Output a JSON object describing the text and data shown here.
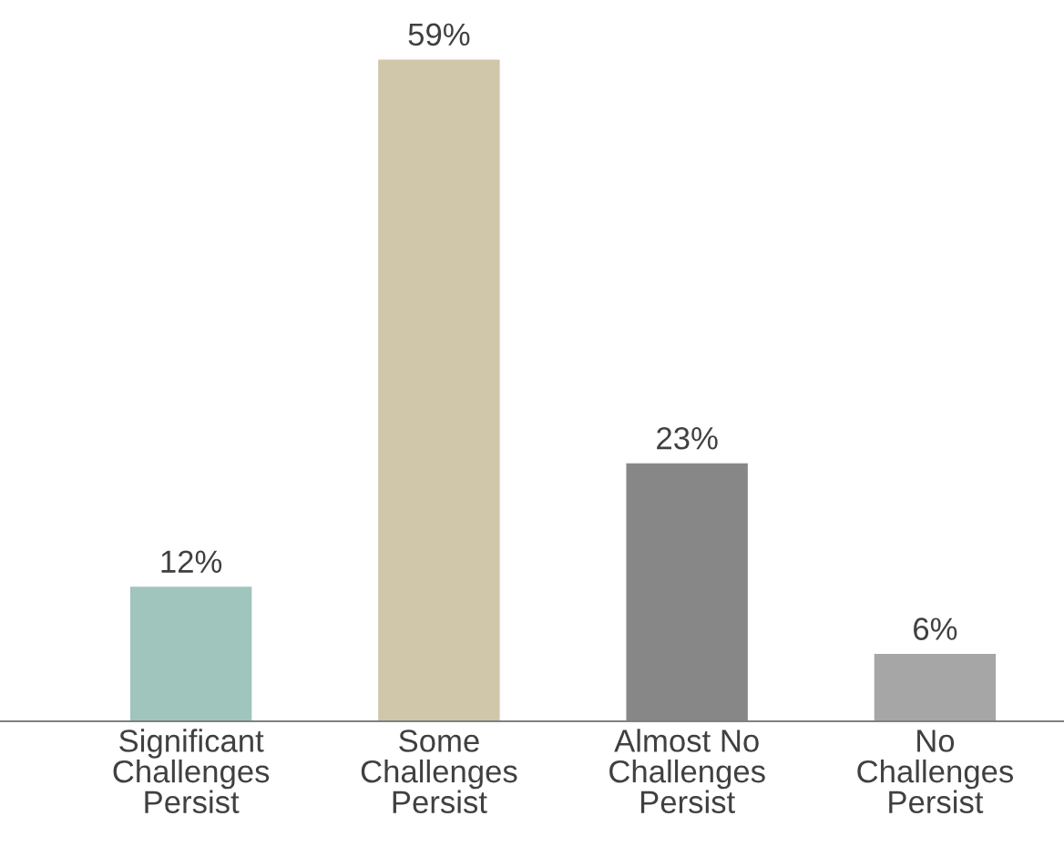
{
  "chart_data": {
    "type": "bar",
    "categories": [
      "Significant\nChallenges\nPersist",
      "Some\nChallenges\nPersist",
      "Almost No\nChallenges\nPersist",
      "No\nChallenges\nPersist"
    ],
    "values": [
      12,
      59,
      23,
      6
    ],
    "colors": [
      "#9fc5bc",
      "#d0c6a9",
      "#878787",
      "#a6a6a6"
    ],
    "value_labels": [
      "12%",
      "59%",
      "23%",
      "6%"
    ],
    "grid": false,
    "legend": false
  }
}
